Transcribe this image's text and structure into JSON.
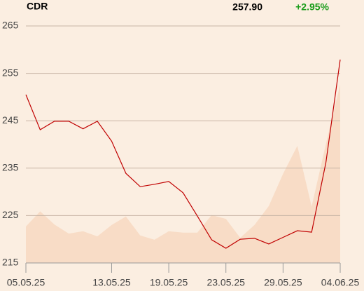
{
  "chart_data": {
    "type": "line",
    "symbol": "CDR",
    "last_price": "257.90",
    "change": "+2.95%",
    "categories": [
      "05.05.25",
      null,
      null,
      null,
      null,
      null,
      "13.05.25",
      null,
      null,
      null,
      "19.05.25",
      null,
      null,
      null,
      "23.05.25",
      null,
      null,
      null,
      "29.05.25",
      null,
      null,
      null,
      "04.06.25"
    ],
    "series": [
      {
        "color": "#f8dcc6",
        "fill": true,
        "values": [
          222.7,
          225.9,
          223.1,
          221.2,
          221.7,
          220.6,
          223.0,
          224.8,
          220.8,
          219.9,
          221.7,
          221.4,
          221.4,
          225.1,
          224.3,
          220.3,
          223.0,
          227.0,
          233.8,
          239.7,
          226.9,
          240.1,
          252.7
        ]
      },
      {
        "color": "#c00000",
        "values": [
          250.5,
          243.1,
          244.9,
          244.9,
          243.3,
          244.9,
          240.7,
          233.9,
          231.1,
          231.6,
          232.2,
          229.8,
          224.9,
          219.9,
          218.1,
          220.0,
          220.2,
          219.0,
          220.4,
          221.8,
          221.5,
          236.2,
          257.9
        ]
      }
    ],
    "ylim": [
      215,
      265
    ],
    "yticks": [
      215,
      225,
      235,
      245,
      255,
      265
    ],
    "grid": true
  }
}
